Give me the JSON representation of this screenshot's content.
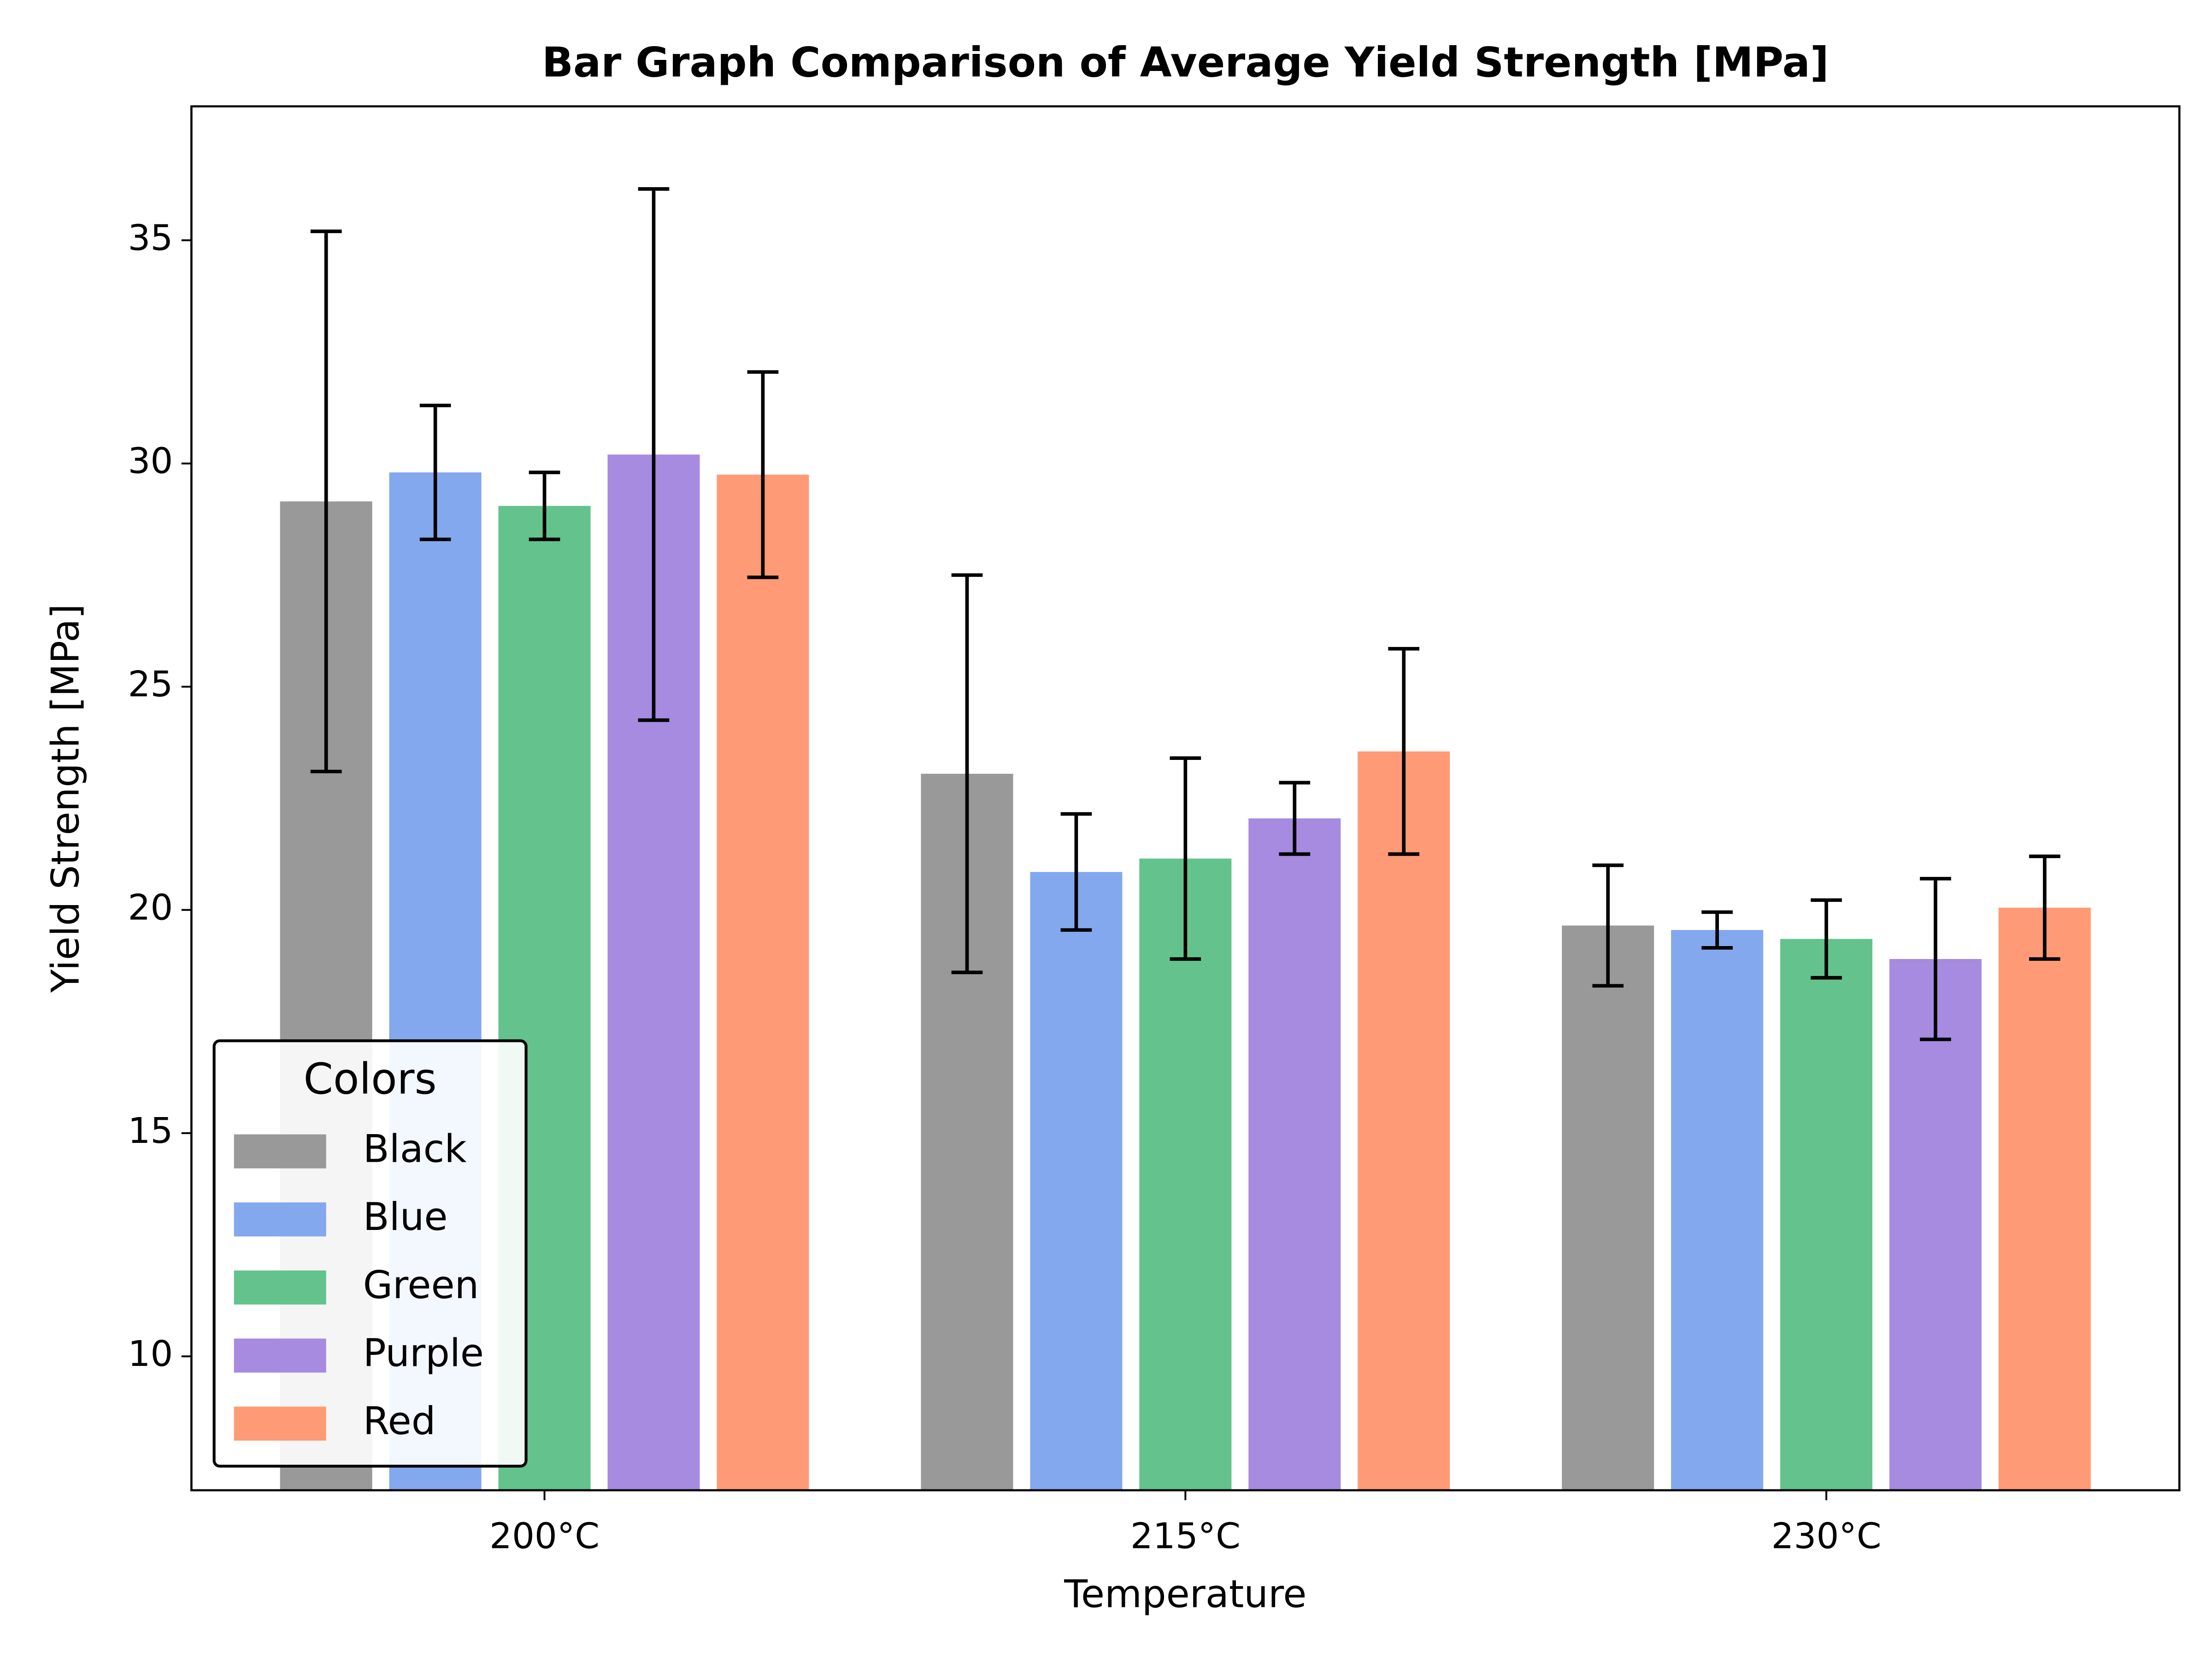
{
  "chart_data": {
    "type": "bar",
    "title": "Bar Graph Comparison of Average Yield Strength [MPa]",
    "x_label": "Temperature",
    "y_label": "Yield Strength [MPa]",
    "categories": [
      "200°C",
      "215°C",
      "230°C"
    ],
    "series": [
      {
        "name": "Black",
        "color": "#999999",
        "values": [
          29.15,
          23.05,
          19.65
        ],
        "errors": [
          6.05,
          4.45,
          1.35
        ]
      },
      {
        "name": "Blue",
        "color": "#84a8ee",
        "values": [
          29.8,
          20.85,
          19.55
        ],
        "errors": [
          1.5,
          1.3,
          0.4
        ]
      },
      {
        "name": "Green",
        "color": "#64c28c",
        "values": [
          29.05,
          21.15,
          19.35
        ],
        "errors": [
          0.75,
          2.25,
          0.87
        ]
      },
      {
        "name": "Purple",
        "color": "#a68be0",
        "values": [
          30.2,
          22.05,
          18.9
        ],
        "errors": [
          5.95,
          0.8,
          1.8
        ]
      },
      {
        "name": "Red",
        "color": "#ff9a76",
        "values": [
          29.75,
          23.55,
          20.05
        ],
        "errors": [
          2.3,
          2.3,
          1.15
        ]
      }
    ],
    "ylim": [
      7,
      38
    ],
    "yticks": [
      10,
      15,
      20,
      25,
      30,
      35
    ],
    "legend_title": "Colors",
    "legend_position": "lower left"
  }
}
